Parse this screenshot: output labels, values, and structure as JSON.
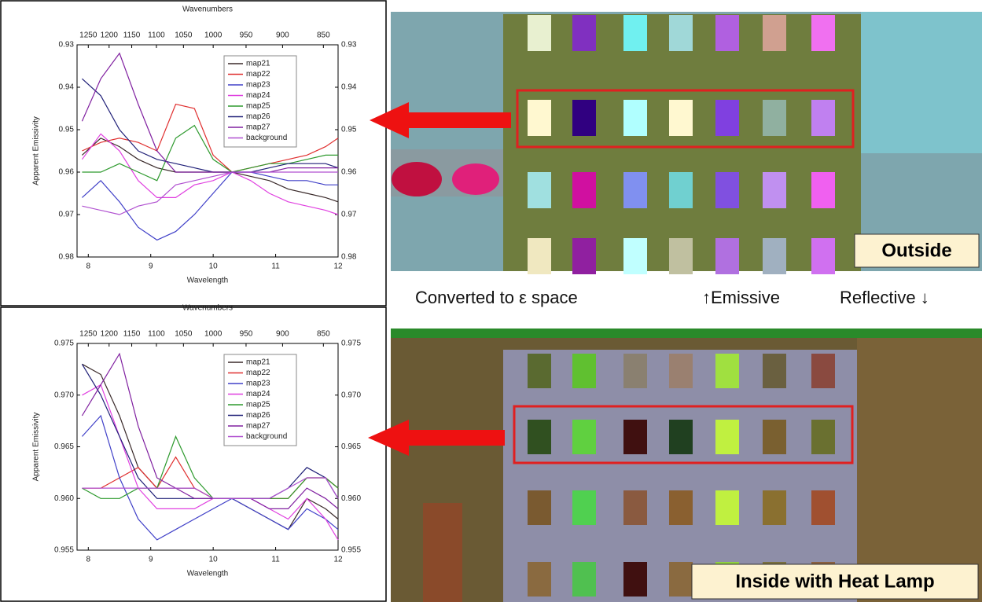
{
  "chart_data": [
    {
      "type": "line",
      "x2label": "Wavenumbers",
      "xlabel": "Wavelength",
      "ylabel": "Apparent Emissivity",
      "x": [
        7.9,
        8.2,
        8.5,
        8.8,
        9.1,
        9.4,
        9.7,
        10,
        10.3,
        10.6,
        10.9,
        11.2,
        11.5,
        11.8,
        12
      ],
      "xlim": [
        7.82,
        12
      ],
      "xticks": [
        8,
        9,
        10,
        11,
        12
      ],
      "x2ticks": [
        1250,
        1200,
        1150,
        1100,
        1050,
        1000,
        950,
        900,
        850
      ],
      "ylim": [
        0.98,
        0.93
      ],
      "yticks": [
        0.93,
        0.94,
        0.95,
        0.96,
        0.97,
        0.98
      ],
      "legend": true,
      "series": [
        {
          "name": "map21",
          "color": "#3a2a2a",
          "values": [
            0.956,
            0.952,
            0.954,
            0.957,
            0.959,
            0.96,
            0.96,
            0.96,
            0.96,
            0.961,
            0.962,
            0.964,
            0.965,
            0.966,
            0.967
          ]
        },
        {
          "name": "map22",
          "color": "#e03030",
          "values": [
            0.955,
            0.953,
            0.952,
            0.953,
            0.955,
            0.944,
            0.945,
            0.956,
            0.96,
            0.959,
            0.958,
            0.957,
            0.956,
            0.954,
            0.952
          ]
        },
        {
          "name": "map23",
          "color": "#4040c8",
          "values": [
            0.966,
            0.962,
            0.967,
            0.973,
            0.976,
            0.974,
            0.97,
            0.965,
            0.96,
            0.96,
            0.961,
            0.962,
            0.962,
            0.963,
            0.963
          ]
        },
        {
          "name": "map24",
          "color": "#e040e0",
          "values": [
            0.957,
            0.951,
            0.955,
            0.962,
            0.966,
            0.966,
            0.963,
            0.962,
            0.96,
            0.962,
            0.965,
            0.967,
            0.968,
            0.969,
            0.97
          ]
        },
        {
          "name": "map25",
          "color": "#2e9a2e",
          "values": [
            0.96,
            0.96,
            0.958,
            0.96,
            0.962,
            0.952,
            0.949,
            0.957,
            0.96,
            0.959,
            0.958,
            0.958,
            0.957,
            0.956,
            0.956
          ]
        },
        {
          "name": "map26",
          "color": "#202078",
          "values": [
            0.938,
            0.942,
            0.95,
            0.955,
            0.957,
            0.958,
            0.959,
            0.96,
            0.96,
            0.96,
            0.959,
            0.958,
            0.958,
            0.958,
            0.959
          ]
        },
        {
          "name": "map27",
          "color": "#8020a0",
          "values": [
            0.948,
            0.938,
            0.932,
            0.944,
            0.955,
            0.96,
            0.96,
            0.96,
            0.96,
            0.96,
            0.96,
            0.959,
            0.959,
            0.959,
            0.959
          ]
        },
        {
          "name": "background",
          "color": "#b050d0",
          "values": [
            0.968,
            0.969,
            0.97,
            0.968,
            0.967,
            0.963,
            0.962,
            0.961,
            0.96,
            0.96,
            0.96,
            0.96,
            0.96,
            0.96,
            0.96
          ]
        }
      ]
    },
    {
      "type": "line",
      "x2label": "Wavenumbers",
      "xlabel": "Wavelength",
      "ylabel": "Apparent Emissivity",
      "x": [
        7.9,
        8.2,
        8.5,
        8.8,
        9.1,
        9.4,
        9.7,
        10,
        10.3,
        10.6,
        10.9,
        11.2,
        11.5,
        11.8,
        12
      ],
      "xlim": [
        7.82,
        12
      ],
      "xticks": [
        8,
        9,
        10,
        11,
        12
      ],
      "x2ticks": [
        1250,
        1200,
        1150,
        1100,
        1050,
        1000,
        950,
        900,
        850
      ],
      "ylim": [
        0.955,
        0.975
      ],
      "yticks": [
        0.955,
        {
          "value": 0.96,
          "label": "0.960"
        },
        0.965,
        {
          "value": 0.97,
          "label": "0.970"
        },
        0.975
      ],
      "legend": true,
      "series": [
        {
          "name": "map21",
          "color": "#3a2a2a",
          "values": [
            0.973,
            0.972,
            0.968,
            0.963,
            0.961,
            0.961,
            0.961,
            0.96,
            0.96,
            0.959,
            0.958,
            0.957,
            0.96,
            0.959,
            0.958
          ]
        },
        {
          "name": "map22",
          "color": "#e03030",
          "values": [
            0.961,
            0.961,
            0.962,
            0.963,
            0.961,
            0.964,
            0.961,
            0.96,
            0.96,
            0.96,
            0.96,
            0.96,
            0.962,
            0.962,
            0.961
          ]
        },
        {
          "name": "map23",
          "color": "#4040c8",
          "values": [
            0.966,
            0.968,
            0.962,
            0.958,
            0.956,
            0.957,
            0.958,
            0.959,
            0.96,
            0.959,
            0.958,
            0.957,
            0.959,
            0.958,
            0.957
          ]
        },
        {
          "name": "map24",
          "color": "#e040e0",
          "values": [
            0.97,
            0.971,
            0.966,
            0.961,
            0.959,
            0.959,
            0.959,
            0.96,
            0.96,
            0.96,
            0.959,
            0.958,
            0.96,
            0.958,
            0.956
          ]
        },
        {
          "name": "map25",
          "color": "#2e9a2e",
          "values": [
            0.961,
            0.96,
            0.96,
            0.961,
            0.961,
            0.966,
            0.962,
            0.96,
            0.96,
            0.96,
            0.96,
            0.96,
            0.962,
            0.962,
            0.961
          ]
        },
        {
          "name": "map26",
          "color": "#202078",
          "values": [
            0.973,
            0.97,
            0.966,
            0.962,
            0.96,
            0.96,
            0.96,
            0.96,
            0.96,
            0.96,
            0.96,
            0.961,
            0.963,
            0.962,
            0.96
          ]
        },
        {
          "name": "map27",
          "color": "#8020a0",
          "values": [
            0.968,
            0.971,
            0.974,
            0.967,
            0.962,
            0.961,
            0.96,
            0.96,
            0.96,
            0.96,
            0.959,
            0.959,
            0.961,
            0.96,
            0.959
          ]
        },
        {
          "name": "background",
          "color": "#b050d0",
          "values": [
            0.961,
            0.961,
            0.961,
            0.961,
            0.961,
            0.961,
            0.961,
            0.96,
            0.96,
            0.96,
            0.96,
            0.961,
            0.962,
            0.962,
            0.96
          ]
        }
      ]
    }
  ],
  "images": [
    {
      "label": "Outside"
    },
    {
      "label": "Inside with Heat Lamp"
    }
  ],
  "caption": {
    "left": "Converted to ε space",
    "emissive": "↑Emissive",
    "reflective": "Reflective ↓"
  }
}
